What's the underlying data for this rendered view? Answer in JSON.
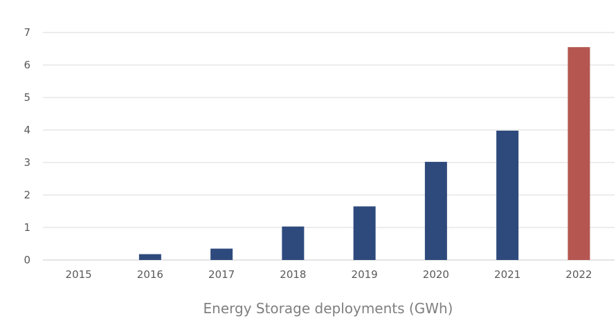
{
  "chart_data": {
    "type": "bar",
    "title": "",
    "xlabel": "Energy Storage deployments (GWh)",
    "ylabel": "",
    "categories": [
      "2015",
      "2016",
      "2017",
      "2018",
      "2019",
      "2020",
      "2021",
      "2022"
    ],
    "values": [
      0.0,
      0.18,
      0.35,
      1.03,
      1.65,
      3.02,
      3.98,
      6.55
    ],
    "ylim": [
      0,
      7
    ],
    "yticks": [
      "0",
      "1",
      "2",
      "3",
      "4",
      "5",
      "6",
      "7"
    ],
    "grid": true,
    "legend": "none",
    "bar_colors": [
      "#2e4a7d",
      "#2e4a7d",
      "#2e4a7d",
      "#2e4a7d",
      "#2e4a7d",
      "#2e4a7d",
      "#2e4a7d",
      "#b55651"
    ]
  }
}
